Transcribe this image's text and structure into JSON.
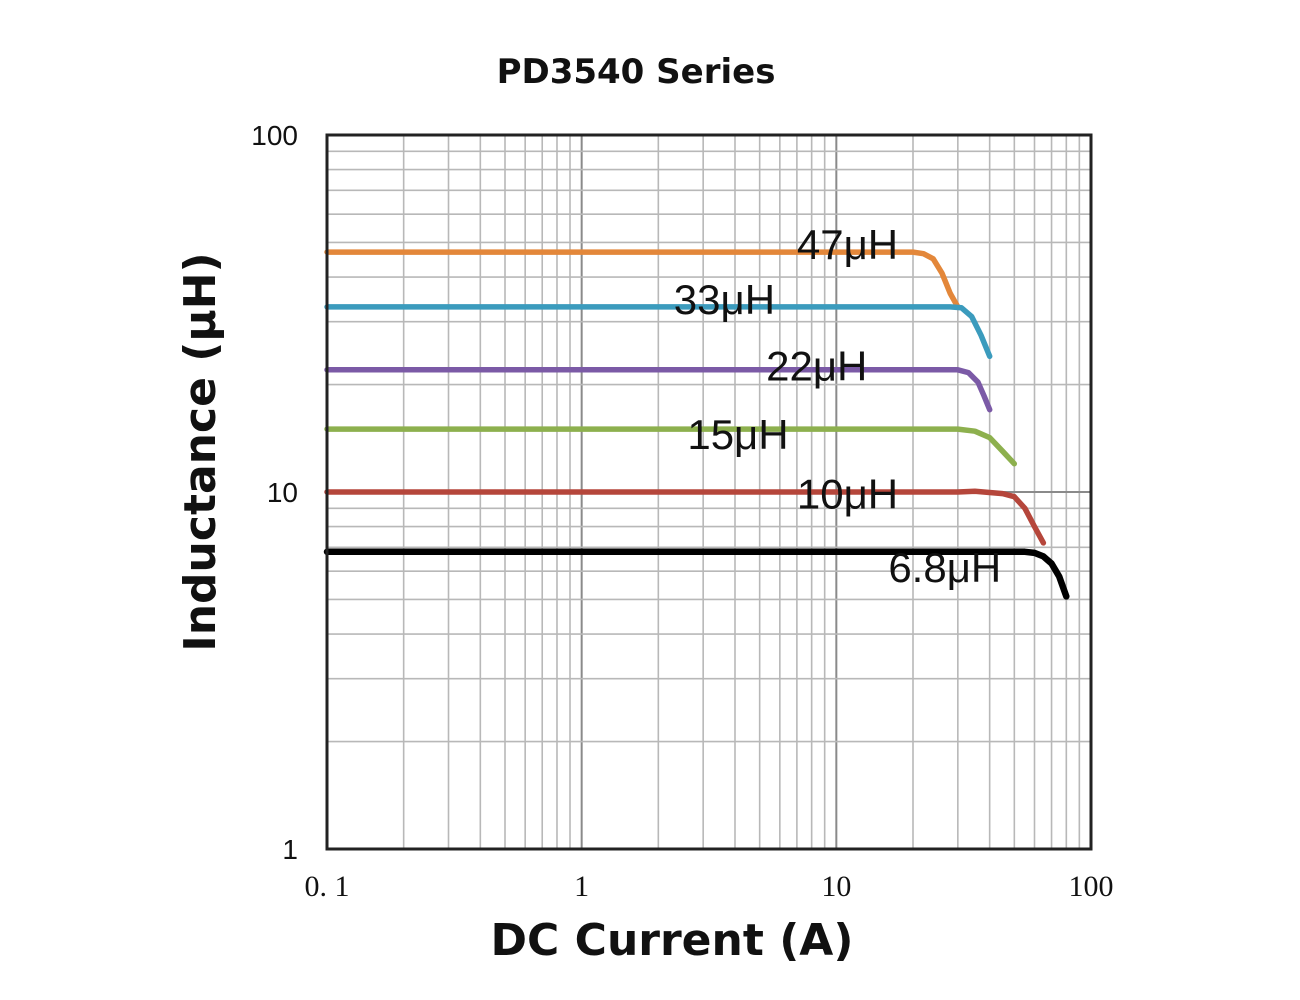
{
  "chart_data": {
    "type": "line",
    "title": "PD3540 Series",
    "xlabel": "DC Current (A)",
    "ylabel": "Inductance (μH)",
    "xscale": "log",
    "yscale": "log",
    "xlim": [
      0.1,
      100
    ],
    "ylim": [
      1,
      100
    ],
    "xtick_labels": [
      "0. 1",
      "1",
      "10",
      "100"
    ],
    "ytick_labels": [
      "1",
      "10",
      "100"
    ],
    "grid": true,
    "series": [
      {
        "name": "47μH",
        "color": "#e3873a",
        "x": [
          0.1,
          1,
          10,
          20,
          22,
          24,
          26,
          28,
          30
        ],
        "y": [
          47,
          47,
          47,
          47,
          46.5,
          45,
          41,
          36,
          33
        ]
      },
      {
        "name": "33μH",
        "color": "#3b9bbd",
        "x": [
          0.1,
          1,
          10,
          28,
          31,
          34,
          37,
          40
        ],
        "y": [
          33,
          33,
          33,
          33,
          32.8,
          31,
          27.5,
          24
        ]
      },
      {
        "name": "22μH",
        "color": "#7b5aa6",
        "x": [
          0.1,
          1,
          10,
          30,
          33,
          36,
          38,
          40
        ],
        "y": [
          22,
          22,
          22,
          22,
          21.6,
          20.3,
          18.6,
          17
        ]
      },
      {
        "name": "15μH",
        "color": "#8db04e",
        "x": [
          0.1,
          1,
          10,
          30,
          35,
          40,
          45,
          50
        ],
        "y": [
          15,
          15,
          15,
          15,
          14.8,
          14.2,
          13,
          12
        ]
      },
      {
        "name": "10μH",
        "color": "#b5463b",
        "x": [
          0.1,
          1,
          10,
          30,
          35,
          45,
          50,
          55,
          60,
          65
        ],
        "y": [
          10,
          10,
          10,
          10,
          10.05,
          9.9,
          9.7,
          9.0,
          8.0,
          7.2
        ]
      },
      {
        "name": "6.8μH",
        "color": "#000000",
        "x": [
          0.1,
          1,
          10,
          40,
          55,
          60,
          65,
          70,
          75,
          80
        ],
        "y": [
          6.8,
          6.8,
          6.8,
          6.8,
          6.8,
          6.75,
          6.6,
          6.3,
          5.8,
          5.1
        ]
      }
    ],
    "annotations": [
      {
        "text": "47μH",
        "x": 7.0,
        "y": 45
      },
      {
        "text": "33μH",
        "x": 2.3,
        "y": 31.5
      },
      {
        "text": "22μH",
        "x": 5.3,
        "y": 20.5
      },
      {
        "text": "15μH",
        "x": 2.6,
        "y": 13.2
      },
      {
        "text": "10μH",
        "x": 7.0,
        "y": 9.0
      },
      {
        "text": "6.8μH",
        "x": 16.0,
        "y": 5.6
      }
    ]
  }
}
